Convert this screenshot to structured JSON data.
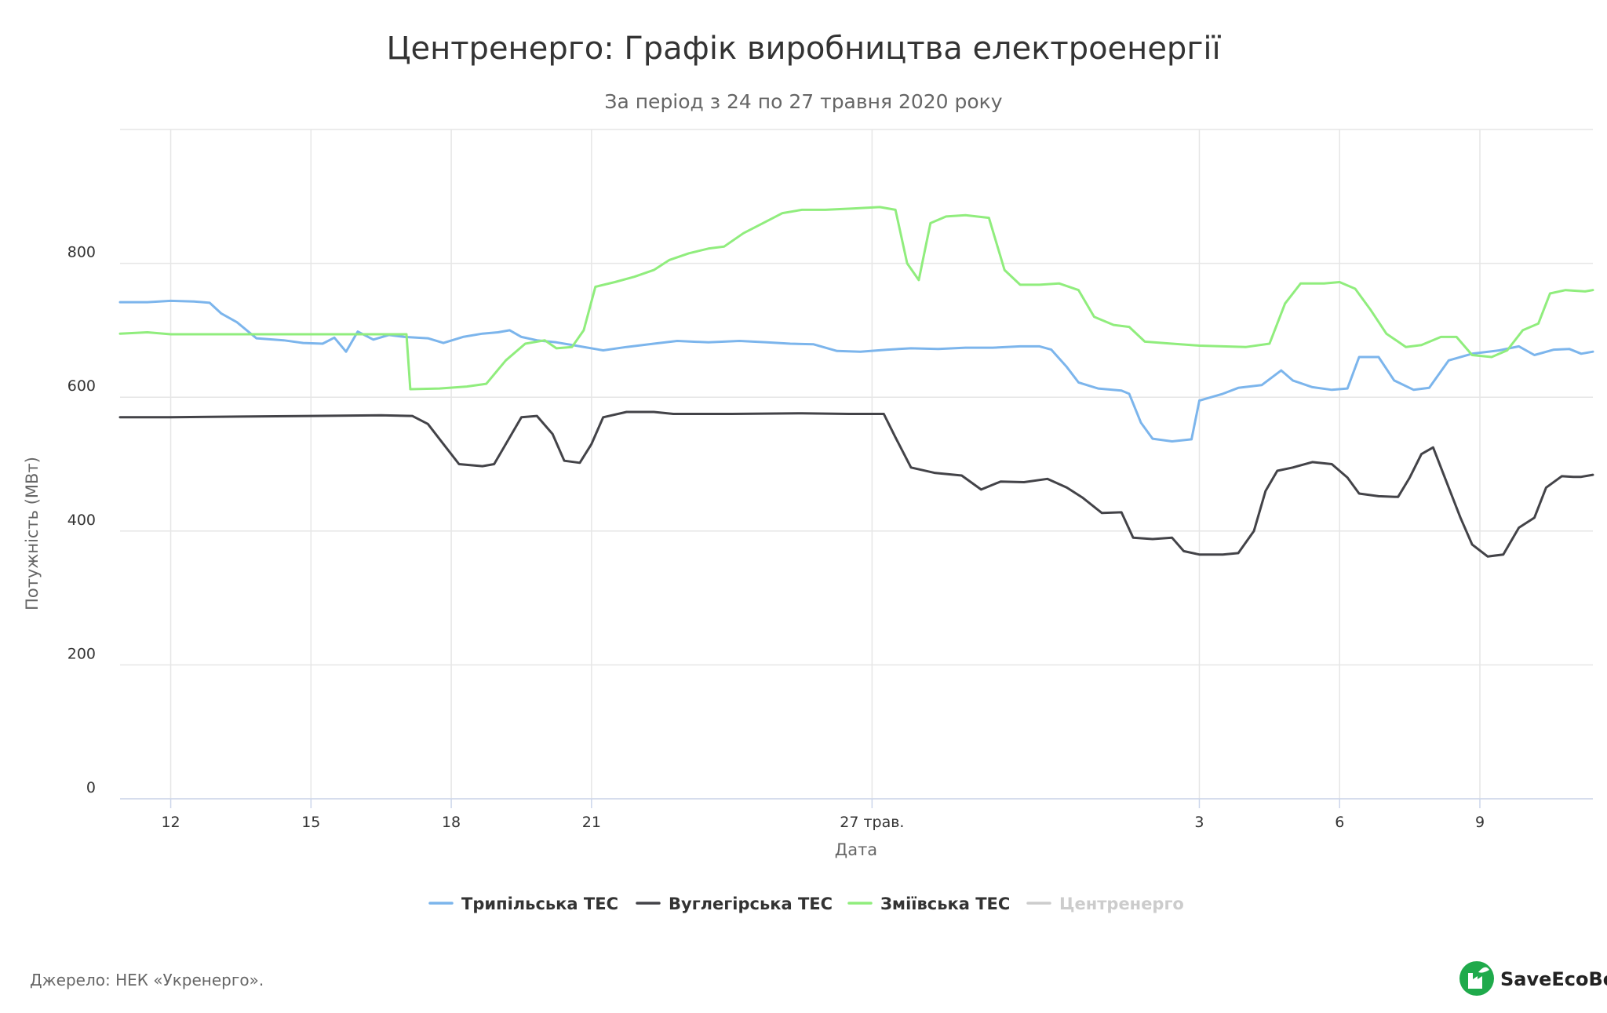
{
  "chart_data": {
    "type": "line",
    "title": "Центренерго: Графік виробництва електроенергії",
    "subtitle": "За період з 24 по 27 травня 2020 року",
    "xlabel": "Дата",
    "ylabel": "Потужність (МВт)",
    "ylim": [
      0,
      1000
    ],
    "yticks": [
      0,
      200,
      400,
      600,
      800
    ],
    "x_range": [
      "2020-05-10 22:00",
      "2020-06-11 10:00"
    ],
    "xticks": [
      {
        "date": "2020-05-12",
        "label": "12"
      },
      {
        "date": "2020-05-15",
        "label": "15"
      },
      {
        "date": "2020-05-18",
        "label": "18"
      },
      {
        "date": "2020-05-21",
        "label": "21"
      },
      {
        "date": "2020-05-27",
        "label": "27 трав."
      },
      {
        "date": "2020-06-03",
        "label": "3"
      },
      {
        "date": "2020-06-06",
        "label": "6"
      },
      {
        "date": "2020-06-09",
        "label": "9"
      }
    ],
    "grid": true,
    "legend_position": "bottom",
    "series": [
      {
        "name": "Трипільська ТЕС",
        "color": "#7cb5ec",
        "visible": true,
        "points": [
          [
            "2020-05-10 22:00",
            742
          ],
          [
            "2020-05-11 12:00",
            742
          ],
          [
            "2020-05-12 00:00",
            744
          ],
          [
            "2020-05-12 12:00",
            743
          ],
          [
            "2020-05-12 20:00",
            741
          ],
          [
            "2020-05-13 02:00",
            725
          ],
          [
            "2020-05-13 10:00",
            712
          ],
          [
            "2020-05-13 20:00",
            688
          ],
          [
            "2020-05-14 10:00",
            685
          ],
          [
            "2020-05-14 20:00",
            681
          ],
          [
            "2020-05-15 06:00",
            680
          ],
          [
            "2020-05-15 12:00",
            689
          ],
          [
            "2020-05-15 18:00",
            668
          ],
          [
            "2020-05-16 00:00",
            698
          ],
          [
            "2020-05-16 08:00",
            686
          ],
          [
            "2020-05-16 16:00",
            693
          ],
          [
            "2020-05-17 00:00",
            690
          ],
          [
            "2020-05-17 12:00",
            688
          ],
          [
            "2020-05-17 20:00",
            681
          ],
          [
            "2020-05-18 06:00",
            690
          ],
          [
            "2020-05-18 16:00",
            695
          ],
          [
            "2020-05-19 00:00",
            697
          ],
          [
            "2020-05-19 06:00",
            700
          ],
          [
            "2020-05-19 12:00",
            690
          ],
          [
            "2020-05-19 20:00",
            685
          ],
          [
            "2020-05-20 06:00",
            682
          ],
          [
            "2020-05-20 16:00",
            677
          ],
          [
            "2020-05-21 06:00",
            670
          ],
          [
            "2020-05-21 18:00",
            675
          ],
          [
            "2020-05-22 08:00",
            680
          ],
          [
            "2020-05-22 20:00",
            684
          ],
          [
            "2020-05-23 12:00",
            682
          ],
          [
            "2020-05-24 04:00",
            684
          ],
          [
            "2020-05-24 18:00",
            682
          ],
          [
            "2020-05-25 06:00",
            680
          ],
          [
            "2020-05-25 18:00",
            679
          ],
          [
            "2020-05-26 06:00",
            669
          ],
          [
            "2020-05-26 18:00",
            668
          ],
          [
            "2020-05-27 08:00",
            671
          ],
          [
            "2020-05-27 20:00",
            673
          ],
          [
            "2020-05-28 10:00",
            672
          ],
          [
            "2020-05-29 00:00",
            674
          ],
          [
            "2020-05-29 14:00",
            674
          ],
          [
            "2020-05-30 04:00",
            676
          ],
          [
            "2020-05-30 14:00",
            676
          ],
          [
            "2020-05-30 20:00",
            671
          ],
          [
            "2020-05-31 04:00",
            645
          ],
          [
            "2020-05-31 10:00",
            622
          ],
          [
            "2020-05-31 20:00",
            613
          ],
          [
            "2020-06-01 08:00",
            610
          ],
          [
            "2020-06-01 12:00",
            605
          ],
          [
            "2020-06-01 18:00",
            562
          ],
          [
            "2020-06-02 00:00",
            538
          ],
          [
            "2020-06-02 10:00",
            534
          ],
          [
            "2020-06-02 20:00",
            537
          ],
          [
            "2020-06-03 00:00",
            595
          ],
          [
            "2020-06-03 12:00",
            605
          ],
          [
            "2020-06-03 20:00",
            614
          ],
          [
            "2020-06-04 08:00",
            618
          ],
          [
            "2020-06-04 18:00",
            640
          ],
          [
            "2020-06-05 00:00",
            625
          ],
          [
            "2020-06-05 10:00",
            615
          ],
          [
            "2020-06-05 20:00",
            611
          ],
          [
            "2020-06-06 04:00",
            613
          ],
          [
            "2020-06-06 10:00",
            660
          ],
          [
            "2020-06-06 20:00",
            660
          ],
          [
            "2020-06-07 04:00",
            625
          ],
          [
            "2020-06-07 14:00",
            611
          ],
          [
            "2020-06-07 22:00",
            614
          ],
          [
            "2020-06-08 08:00",
            655
          ],
          [
            "2020-06-08 20:00",
            665
          ],
          [
            "2020-06-09 10:00",
            670
          ],
          [
            "2020-06-09 20:00",
            676
          ],
          [
            "2020-06-10 04:00",
            663
          ],
          [
            "2020-06-10 14:00",
            671
          ],
          [
            "2020-06-10 22:00",
            672
          ],
          [
            "2020-06-11 04:00",
            665
          ],
          [
            "2020-06-11 10:00",
            668
          ]
        ]
      },
      {
        "name": "Вуглегірська ТЕС",
        "color": "#434348",
        "visible": true,
        "points": [
          [
            "2020-05-10 22:00",
            570
          ],
          [
            "2020-05-12 00:00",
            570
          ],
          [
            "2020-05-13 12:00",
            571
          ],
          [
            "2020-05-15 00:00",
            572
          ],
          [
            "2020-05-16 12:00",
            573
          ],
          [
            "2020-05-17 04:00",
            572
          ],
          [
            "2020-05-17 12:00",
            560
          ],
          [
            "2020-05-17 20:00",
            530
          ],
          [
            "2020-05-18 04:00",
            500
          ],
          [
            "2020-05-18 16:00",
            497
          ],
          [
            "2020-05-18 22:00",
            500
          ],
          [
            "2020-05-19 06:00",
            540
          ],
          [
            "2020-05-19 12:00",
            570
          ],
          [
            "2020-05-19 20:00",
            572
          ],
          [
            "2020-05-20 04:00",
            545
          ],
          [
            "2020-05-20 10:00",
            505
          ],
          [
            "2020-05-20 18:00",
            502
          ],
          [
            "2020-05-21 00:00",
            530
          ],
          [
            "2020-05-21 06:00",
            570
          ],
          [
            "2020-05-21 18:00",
            578
          ],
          [
            "2020-05-22 08:00",
            578
          ],
          [
            "2020-05-22 18:00",
            575
          ],
          [
            "2020-05-24 00:00",
            575
          ],
          [
            "2020-05-25 12:00",
            576
          ],
          [
            "2020-05-26 12:00",
            575
          ],
          [
            "2020-05-27 06:00",
            575
          ],
          [
            "2020-05-27 12:00",
            540
          ],
          [
            "2020-05-27 20:00",
            495
          ],
          [
            "2020-05-28 08:00",
            487
          ],
          [
            "2020-05-28 22:00",
            483
          ],
          [
            "2020-05-29 08:00",
            462
          ],
          [
            "2020-05-29 18:00",
            474
          ],
          [
            "2020-05-30 06:00",
            473
          ],
          [
            "2020-05-30 18:00",
            478
          ],
          [
            "2020-05-31 04:00",
            465
          ],
          [
            "2020-05-31 12:00",
            450
          ],
          [
            "2020-05-31 22:00",
            427
          ],
          [
            "2020-06-01 08:00",
            428
          ],
          [
            "2020-06-01 14:00",
            390
          ],
          [
            "2020-06-02 00:00",
            388
          ],
          [
            "2020-06-02 10:00",
            390
          ],
          [
            "2020-06-02 16:00",
            370
          ],
          [
            "2020-06-03 00:00",
            365
          ],
          [
            "2020-06-03 12:00",
            365
          ],
          [
            "2020-06-03 20:00",
            367
          ],
          [
            "2020-06-04 04:00",
            400
          ],
          [
            "2020-06-04 10:00",
            460
          ],
          [
            "2020-06-04 16:00",
            490
          ],
          [
            "2020-06-05 00:00",
            495
          ],
          [
            "2020-06-05 10:00",
            503
          ],
          [
            "2020-06-05 20:00",
            500
          ],
          [
            "2020-06-06 04:00",
            480
          ],
          [
            "2020-06-06 10:00",
            456
          ],
          [
            "2020-06-06 20:00",
            452
          ],
          [
            "2020-06-07 06:00",
            451
          ],
          [
            "2020-06-07 12:00",
            480
          ],
          [
            "2020-06-07 18:00",
            515
          ],
          [
            "2020-06-08 00:00",
            525
          ],
          [
            "2020-06-08 06:00",
            480
          ],
          [
            "2020-06-08 14:00",
            420
          ],
          [
            "2020-06-08 20:00",
            380
          ],
          [
            "2020-06-09 04:00",
            362
          ],
          [
            "2020-06-09 12:00",
            365
          ],
          [
            "2020-06-09 20:00",
            405
          ],
          [
            "2020-06-10 04:00",
            420
          ],
          [
            "2020-06-10 10:00",
            465
          ],
          [
            "2020-06-10 18:00",
            482
          ],
          [
            "2020-06-11 00:00",
            481
          ],
          [
            "2020-06-11 04:00",
            481
          ],
          [
            "2020-06-11 10:00",
            484
          ]
        ]
      },
      {
        "name": "Зміївська ТЕС",
        "color": "#90ed7d",
        "visible": true,
        "points": [
          [
            "2020-05-10 22:00",
            695
          ],
          [
            "2020-05-11 12:00",
            697
          ],
          [
            "2020-05-12 00:00",
            694
          ],
          [
            "2020-05-13 12:00",
            694
          ],
          [
            "2020-05-15 00:00",
            694
          ],
          [
            "2020-05-16 00:00",
            694
          ],
          [
            "2020-05-16 16:00",
            694
          ],
          [
            "2020-05-17 01:00",
            694
          ],
          [
            "2020-05-17 03:00",
            612
          ],
          [
            "2020-05-17 18:00",
            613
          ],
          [
            "2020-05-18 08:00",
            616
          ],
          [
            "2020-05-18 18:00",
            620
          ],
          [
            "2020-05-19 04:00",
            655
          ],
          [
            "2020-05-19 14:00",
            680
          ],
          [
            "2020-05-20 00:00",
            685
          ],
          [
            "2020-05-20 06:00",
            673
          ],
          [
            "2020-05-20 14:00",
            675
          ],
          [
            "2020-05-20 20:00",
            700
          ],
          [
            "2020-05-21 02:00",
            765
          ],
          [
            "2020-05-21 12:00",
            772
          ],
          [
            "2020-05-21 22:00",
            780
          ],
          [
            "2020-05-22 08:00",
            790
          ],
          [
            "2020-05-22 16:00",
            805
          ],
          [
            "2020-05-23 02:00",
            815
          ],
          [
            "2020-05-23 12:00",
            822
          ],
          [
            "2020-05-23 20:00",
            825
          ],
          [
            "2020-05-24 06:00",
            845
          ],
          [
            "2020-05-24 16:00",
            860
          ],
          [
            "2020-05-25 02:00",
            875
          ],
          [
            "2020-05-25 12:00",
            880
          ],
          [
            "2020-05-26 00:00",
            880
          ],
          [
            "2020-05-26 14:00",
            882
          ],
          [
            "2020-05-27 04:00",
            884
          ],
          [
            "2020-05-27 12:00",
            880
          ],
          [
            "2020-05-27 18:00",
            800
          ],
          [
            "2020-05-28 00:00",
            775
          ],
          [
            "2020-05-28 06:00",
            860
          ],
          [
            "2020-05-28 14:00",
            870
          ],
          [
            "2020-05-29 00:00",
            872
          ],
          [
            "2020-05-29 12:00",
            868
          ],
          [
            "2020-05-29 20:00",
            790
          ],
          [
            "2020-05-30 04:00",
            768
          ],
          [
            "2020-05-30 14:00",
            768
          ],
          [
            "2020-05-31 00:00",
            770
          ],
          [
            "2020-05-31 10:00",
            760
          ],
          [
            "2020-05-31 18:00",
            720
          ],
          [
            "2020-06-01 04:00",
            708
          ],
          [
            "2020-06-01 12:00",
            705
          ],
          [
            "2020-06-01 20:00",
            683
          ],
          [
            "2020-06-02 10:00",
            680
          ],
          [
            "2020-06-03 00:00",
            677
          ],
          [
            "2020-06-03 12:00",
            676
          ],
          [
            "2020-06-04 00:00",
            675
          ],
          [
            "2020-06-04 12:00",
            680
          ],
          [
            "2020-06-04 20:00",
            740
          ],
          [
            "2020-06-05 04:00",
            770
          ],
          [
            "2020-06-05 16:00",
            770
          ],
          [
            "2020-06-06 00:00",
            772
          ],
          [
            "2020-06-06 08:00",
            762
          ],
          [
            "2020-06-06 16:00",
            730
          ],
          [
            "2020-06-07 00:00",
            695
          ],
          [
            "2020-06-07 10:00",
            675
          ],
          [
            "2020-06-07 18:00",
            678
          ],
          [
            "2020-06-08 04:00",
            690
          ],
          [
            "2020-06-08 12:00",
            690
          ],
          [
            "2020-06-08 20:00",
            663
          ],
          [
            "2020-06-09 06:00",
            660
          ],
          [
            "2020-06-09 14:00",
            670
          ],
          [
            "2020-06-09 22:00",
            700
          ],
          [
            "2020-06-10 06:00",
            710
          ],
          [
            "2020-06-10 12:00",
            755
          ],
          [
            "2020-06-10 20:00",
            760
          ],
          [
            "2020-06-11 06:00",
            758
          ],
          [
            "2020-06-11 10:00",
            760
          ]
        ]
      },
      {
        "name": "Центренерго",
        "color": "#cccccc",
        "visible": false,
        "points": []
      }
    ]
  },
  "footer": {
    "source": "Джерело: НЕК «Укренерго».",
    "brand": "SaveEcoBot",
    "brand_color": "#1faa4b"
  }
}
